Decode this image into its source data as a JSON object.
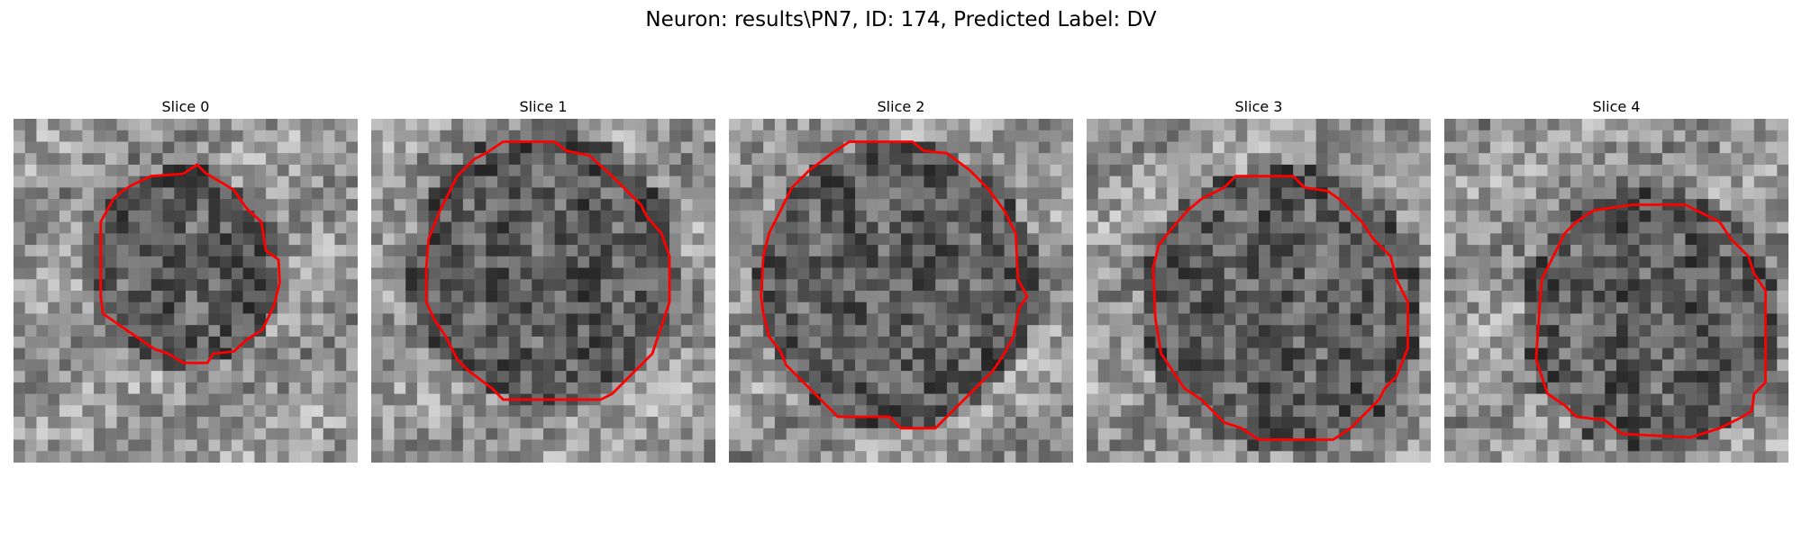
{
  "figure": {
    "title": "Neuron: results\\PN7, ID: 174, Predicted Label: DV"
  },
  "panels": [
    {
      "title": "Slice 0"
    },
    {
      "title": "Slice 1"
    },
    {
      "title": "Slice 2"
    },
    {
      "title": "Slice 3"
    },
    {
      "title": "Slice 4"
    }
  ],
  "colors": {
    "contour": "#ff0000",
    "background": "#ffffff"
  }
}
